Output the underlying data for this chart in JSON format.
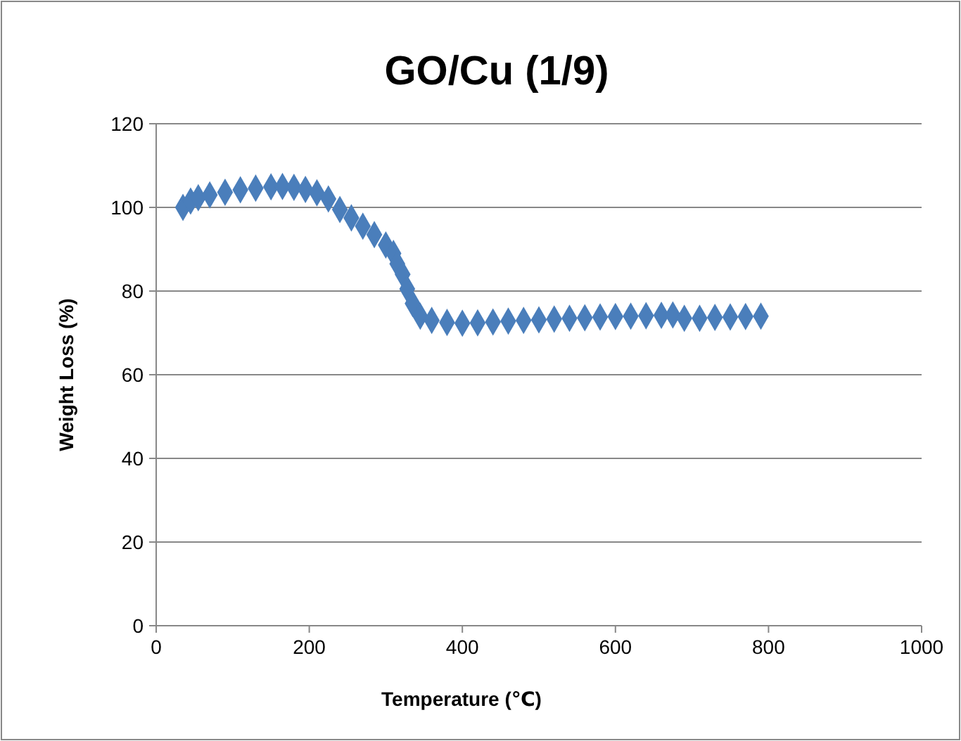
{
  "chart_data": {
    "type": "scatter",
    "title": "GO/Cu (1/9)",
    "xlabel": "Temperature (℃)",
    "ylabel": "Weight Loss (%)",
    "x": [
      35,
      45,
      55,
      70,
      90,
      110,
      130,
      150,
      165,
      180,
      195,
      210,
      225,
      240,
      255,
      270,
      285,
      300,
      310,
      315,
      322,
      328,
      335,
      345,
      360,
      380,
      400,
      420,
      440,
      460,
      480,
      500,
      520,
      540,
      560,
      580,
      600,
      620,
      640,
      660,
      675,
      690,
      710,
      730,
      750,
      770,
      790
    ],
    "series": [
      {
        "color": "#4a7ebb",
        "values": [
          100,
          101.5,
          102.3,
          103,
          103.6,
          104.2,
          104.6,
          104.9,
          105,
          104.8,
          104.3,
          103.5,
          102,
          99.5,
          97.5,
          95.5,
          93.5,
          91,
          89,
          86.5,
          84,
          80.5,
          77,
          74,
          73,
          72.5,
          72.3,
          72.4,
          72.6,
          72.8,
          73,
          73.1,
          73.3,
          73.5,
          73.6,
          73.8,
          73.9,
          74,
          74.1,
          74.2,
          74.3,
          73.5,
          73.5,
          73.7,
          73.8,
          73.9,
          74
        ]
      }
    ],
    "xlim": [
      0,
      1000
    ],
    "xticks": [
      0,
      200,
      400,
      600,
      800,
      1000
    ],
    "ylim": [
      0,
      120
    ],
    "yticks": [
      0,
      20,
      40,
      60,
      80,
      100,
      120
    ],
    "grid": "y",
    "marker": "diamond"
  }
}
